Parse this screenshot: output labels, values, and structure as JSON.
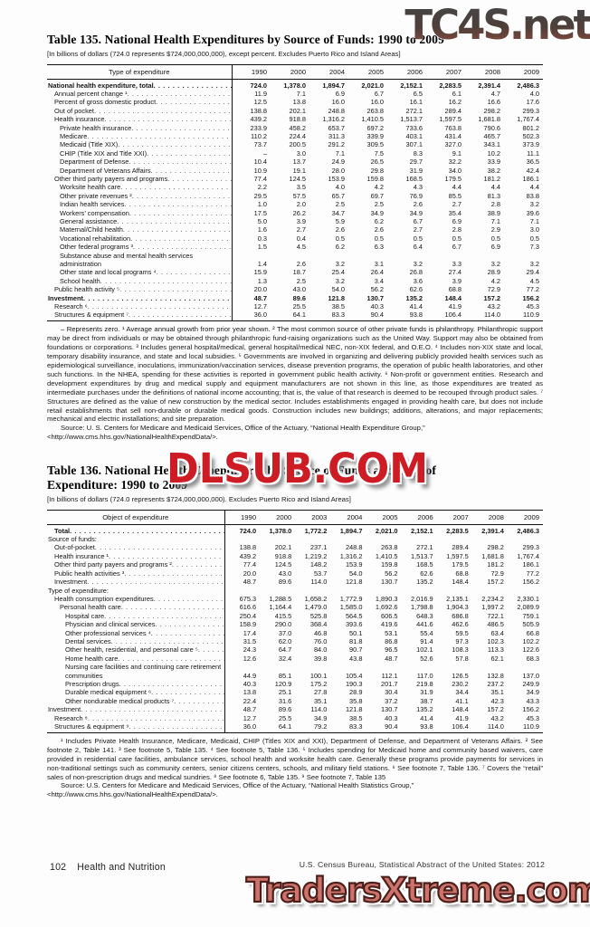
{
  "watermarks": {
    "top_right": "TC4S.net",
    "middle": "DLSUB.COM",
    "bottom": "TradersXtreme.com"
  },
  "table135": {
    "title": "Table 135. National Health Expenditures by Source of Funds: 1990 to 2009",
    "subtitle": "[In billions of dollars (724.0 represents $724,000,000,000), except percent. Excludes Puerto Rico and Island Areas]",
    "stub_header": "Type of expenditure",
    "years": [
      "1990",
      "2000",
      "2004",
      "2005",
      "2006",
      "2007",
      "2008",
      "2009"
    ],
    "rows": [
      {
        "label": "National health expenditure, total",
        "indent": 0,
        "bold": true,
        "values": [
          "724.0",
          "1,378.0",
          "1,894.7",
          "2,021.0",
          "2,152.1",
          "2,283.5",
          "2,391.4",
          "2,486.3"
        ]
      },
      {
        "label": "Annual percent change ¹",
        "indent": 1,
        "values": [
          "11.9",
          "7.1",
          "6.9",
          "6.7",
          "6.5",
          "6.1",
          "4.7",
          "4.0"
        ]
      },
      {
        "label": "Percent of gross domestic product",
        "indent": 1,
        "values": [
          "12.5",
          "13.8",
          "16.0",
          "16.0",
          "16.1",
          "16.2",
          "16.6",
          "17.6"
        ]
      },
      {
        "label": "Out of pocket",
        "indent": 1,
        "values": [
          "138.8",
          "202.1",
          "248.8",
          "263.8",
          "272.1",
          "289.4",
          "298.2",
          "299.3"
        ]
      },
      {
        "label": "Health insurance",
        "indent": 1,
        "values": [
          "439.2",
          "918.8",
          "1,316.2",
          "1,410.5",
          "1,513.7",
          "1,597.5",
          "1,681.8",
          "1,767.4"
        ]
      },
      {
        "label": "Private health insurance",
        "indent": 2,
        "values": [
          "233.9",
          "458.2",
          "653.7",
          "697.2",
          "733.6",
          "763.8",
          "790.6",
          "801.2"
        ]
      },
      {
        "label": "Medicare",
        "indent": 2,
        "values": [
          "110.2",
          "224.4",
          "311.3",
          "339.9",
          "403.1",
          "431.4",
          "465.7",
          "502.3"
        ]
      },
      {
        "label": "Medicaid (Title XIX)",
        "indent": 2,
        "values": [
          "73.7",
          "200.5",
          "291.2",
          "309.5",
          "307.1",
          "327.0",
          "343.1",
          "373.9"
        ]
      },
      {
        "label": "CHIP (Title XIX and Title XXI)",
        "indent": 2,
        "values": [
          "–",
          "3.0",
          "7.1",
          "7.5",
          "8.3",
          "9.1",
          "10.2",
          "11.1"
        ]
      },
      {
        "label": "Department of Defense",
        "indent": 2,
        "values": [
          "10.4",
          "13.7",
          "24.9",
          "26.5",
          "29.7",
          "32.2",
          "33.9",
          "36.5"
        ]
      },
      {
        "label": "Department of Veterans Affairs",
        "indent": 2,
        "values": [
          "10.9",
          "19.1",
          "28.0",
          "29.8",
          "31.9",
          "34.0",
          "38.2",
          "42.4"
        ]
      },
      {
        "label": "Other third party payers and programs",
        "indent": 1,
        "values": [
          "77.4",
          "124.5",
          "153.9",
          "159.8",
          "168.5",
          "179.5",
          "181.2",
          "186.1"
        ]
      },
      {
        "label": "Worksite health care",
        "indent": 2,
        "values": [
          "2.2",
          "3.5",
          "4.0",
          "4.2",
          "4.3",
          "4.4",
          "4.4",
          "4.4"
        ]
      },
      {
        "label": "Other private revenues ²",
        "indent": 2,
        "values": [
          "29.5",
          "57.5",
          "65.7",
          "69.7",
          "76.9",
          "85.5",
          "81.3",
          "83.8"
        ]
      },
      {
        "label": "Indian health services",
        "indent": 2,
        "values": [
          "1.0",
          "2.0",
          "2.5",
          "2.5",
          "2.6",
          "2.7",
          "2.8",
          "3.2"
        ]
      },
      {
        "label": "Workers’ compensation",
        "indent": 2,
        "values": [
          "17.5",
          "26.2",
          "34.7",
          "34.9",
          "34.9",
          "35.4",
          "38.9",
          "39.6"
        ]
      },
      {
        "label": "General assistance",
        "indent": 2,
        "values": [
          "5.0",
          "3.9",
          "5.9",
          "6.2",
          "6.7",
          "6.9",
          "7.1",
          "7.1"
        ]
      },
      {
        "label": "Maternal/Child health",
        "indent": 2,
        "values": [
          "1.6",
          "2.7",
          "2.6",
          "2.6",
          "2.7",
          "2.8",
          "2.9",
          "3.0"
        ]
      },
      {
        "label": "Vocational rehabilitation",
        "indent": 2,
        "values": [
          "0.3",
          "0.4",
          "0.5",
          "0.5",
          "0.5",
          "0.5",
          "0.5",
          "0.5"
        ]
      },
      {
        "label": "Other federal programs ³",
        "indent": 2,
        "values": [
          "1.5",
          "4.5",
          "6.2",
          "6.3",
          "6.4",
          "6.7",
          "6.9",
          "7.3"
        ]
      },
      {
        "label": "Substance abuse and mental health services administration",
        "indent": 2,
        "values": [
          "1.4",
          "2.6",
          "3.2",
          "3.1",
          "3.2",
          "3.3",
          "3.2",
          "3.2"
        ]
      },
      {
        "label": "Other state and local programs ⁴",
        "indent": 2,
        "values": [
          "15.9",
          "18.7",
          "25.4",
          "26.4",
          "26.8",
          "27.4",
          "28.9",
          "29.4"
        ]
      },
      {
        "label": "School health",
        "indent": 2,
        "values": [
          "1.3",
          "2.5",
          "3.2",
          "3.4",
          "3.6",
          "3.9",
          "4.2",
          "4.5"
        ]
      },
      {
        "label": "Public health activity ⁵",
        "indent": 1,
        "values": [
          "20.0",
          "43.0",
          "54.0",
          "56.2",
          "62.6",
          "68.8",
          "72.9",
          "77.2"
        ]
      },
      {
        "label": "Investment",
        "indent": 0,
        "bold": true,
        "values": [
          "48.7",
          "89.6",
          "121.8",
          "130.7",
          "135.2",
          "148.4",
          "157.2",
          "156.2"
        ]
      },
      {
        "label": "Research ⁶",
        "indent": 1,
        "values": [
          "12.7",
          "25.5",
          "38.5",
          "40.3",
          "41.4",
          "41.9",
          "43.2",
          "45.3"
        ]
      },
      {
        "label": "Structures & equipment ⁷",
        "indent": 1,
        "values": [
          "36.0",
          "64.1",
          "83.3",
          "90.4",
          "93.8",
          "106.4",
          "114.0",
          "110.9"
        ]
      }
    ],
    "footnote": "– Represents zero. ¹ Average annual growth from prior year shown. ² The most common source of other private funds is philanthropy. Philanthropic support may be direct from individuals or may be obtained through philanthropic fund-raising organizations such as the United Way. Support may also be obtained from foundations or corporations. ³ Includes general hospital/medical, general hospital/medical NEC, non-XIX federal, and O.E.O. ⁴ Includes non-XIX state and local, temporary disability insurance, and state and local subsidies. ⁵ Governments are involved in organizing and delivering publicly provided health services such as epidemiological surveillance, inoculations, immunization/vaccination services, disease prevention programs, the operation of public health laboratories, and other such functions. In the NHEA, spending for these activities is reported in government public health activity. ⁶ Non-profit or government entities. Research and development expenditures by drug and medical supply and equipment manufacturers are not shown in this line, as those expenditures are treated as intermediate purchases under the definitions of national income accounting; that is, the value of that research is deemed to be recouped through product sales. ⁷ Structures are defined as the value of new construction by the medical sector. Includes establishments engaged in providing health care, but does not include retail establishments that sell non-durable or durable medical goods. Construction includes new buildings; additions, alterations, and major replacements; mechanical and electric installations; and site preparation.",
    "source_lines": [
      "Source: U. S. Centers for Medicare and Medicaid Services, Office of the Actuary, “National Health Expenditure Group,”",
      "<http://www.cms.hhs.gov/NationalHealthExpendData/>."
    ]
  },
  "table136": {
    "title": "Table 136. National Health Expenditures by Source of Funds and Type of Expenditure: 1990 to 2009",
    "subtitle": "[In billions of dollars (724.0 represents $724,000,000,000). Excludes Puerto Rico and Island Areas]",
    "stub_header": "Object of expenditure",
    "years": [
      "1990",
      "2000",
      "2003",
      "2004",
      "2005",
      "2006",
      "2007",
      "2008",
      "2009"
    ],
    "rows": [
      {
        "label": "Total",
        "indent": 1,
        "bold": true,
        "values": [
          "724.0",
          "1,378.0",
          "1,772.2",
          "1,894.7",
          "2,021.0",
          "2,152.1",
          "2,283.5",
          "2,391.4",
          "2,486.3"
        ]
      },
      {
        "label": "Source of funds:",
        "indent": 0,
        "values": []
      },
      {
        "label": "Out-of-pocket",
        "indent": 1,
        "values": [
          "138.8",
          "202.1",
          "237.1",
          "248.8",
          "263.8",
          "272.1",
          "289.4",
          "298.2",
          "299.3"
        ]
      },
      {
        "label": "Health insurance ¹",
        "indent": 1,
        "values": [
          "439.2",
          "918.8",
          "1,219.2",
          "1,316.2",
          "1,410.5",
          "1,513.7",
          "1,597.5",
          "1,681.8",
          "1,767.4"
        ]
      },
      {
        "label": "Other third party payers and programs ²",
        "indent": 1,
        "values": [
          "77.4",
          "124.5",
          "148.2",
          "153.9",
          "159.8",
          "168.5",
          "179.5",
          "181.2",
          "186.1"
        ]
      },
      {
        "label": "Public health activities ³",
        "indent": 1,
        "values": [
          "20.0",
          "43.0",
          "53.7",
          "54.0",
          "56.2",
          "62.6",
          "68.8",
          "72.9",
          "77.2"
        ]
      },
      {
        "label": "Investment",
        "indent": 1,
        "values": [
          "48.7",
          "89.6",
          "114.0",
          "121.8",
          "130.7",
          "135.2",
          "148.4",
          "157.2",
          "156.2"
        ]
      },
      {
        "label": "Type of expenditure:",
        "indent": 0,
        "values": []
      },
      {
        "label": "Health consumption expenditures",
        "indent": 1,
        "values": [
          "675.3",
          "1,288.5",
          "1,658.2",
          "1,772.9",
          "1,890.3",
          "2,016.9",
          "2,135.1",
          "2,234.2",
          "2,330.1"
        ]
      },
      {
        "label": "Personal health care",
        "indent": 2,
        "values": [
          "616.6",
          "1,164.4",
          "1,479.0",
          "1,585.0",
          "1,692.6",
          "1,798.8",
          "1,904.3",
          "1,997.2",
          "2,089.9"
        ]
      },
      {
        "label": "Hospital care",
        "indent": 3,
        "values": [
          "250.4",
          "415.5",
          "525.8",
          "564.5",
          "606.5",
          "648.3",
          "686.8",
          "722.1",
          "759.1"
        ]
      },
      {
        "label": "Physician and clinical services",
        "indent": 3,
        "values": [
          "158.9",
          "290.0",
          "368.4",
          "393.6",
          "419.6",
          "441.6",
          "462.6",
          "486.5",
          "505.9"
        ]
      },
      {
        "label": "Other professional services ⁴",
        "indent": 3,
        "values": [
          "17.4",
          "37.0",
          "46.8",
          "50.1",
          "53.1",
          "55.4",
          "59.5",
          "63.4",
          "66.8"
        ]
      },
      {
        "label": "Dental services",
        "indent": 3,
        "values": [
          "31.5",
          "62.0",
          "76.0",
          "81.8",
          "86.8",
          "91.4",
          "97.3",
          "102.3",
          "102.2"
        ]
      },
      {
        "label": "Other health, residential, and personal care ⁵",
        "indent": 3,
        "values": [
          "24.3",
          "64.7",
          "84.0",
          "90.7",
          "96.5",
          "102.1",
          "108.3",
          "113.3",
          "122.6"
        ]
      },
      {
        "label": "Home health care",
        "indent": 3,
        "values": [
          "12.6",
          "32.4",
          "39.8",
          "43.8",
          "48.7",
          "52.6",
          "57.8",
          "62.1",
          "68.3"
        ]
      },
      {
        "label": "Nursing care facilities and continuing care retirement communities",
        "indent": 3,
        "values": [
          "44.9",
          "85.1",
          "100.1",
          "105.4",
          "112.1",
          "117.0",
          "126.5",
          "132.8",
          "137.0"
        ]
      },
      {
        "label": "Prescription drugs",
        "indent": 3,
        "values": [
          "40.3",
          "120.9",
          "175.2",
          "190.3",
          "201.7",
          "219.8",
          "230.2",
          "237.2",
          "249.9"
        ]
      },
      {
        "label": "Durable medical equipment ⁶",
        "indent": 3,
        "values": [
          "13.8",
          "25.1",
          "27.8",
          "28.9",
          "30.4",
          "31.9",
          "34.4",
          "35.1",
          "34.9"
        ]
      },
      {
        "label": "Other nondurable medical products ⁷",
        "indent": 3,
        "values": [
          "22.4",
          "31.6",
          "35.1",
          "35.8",
          "37.2",
          "38.7",
          "41.1",
          "42.3",
          "43.3"
        ]
      },
      {
        "label": "Investment",
        "indent": 0,
        "values": [
          "48.7",
          "89.6",
          "114.0",
          "121.8",
          "130.7",
          "135.2",
          "148.4",
          "157.2",
          "156.2"
        ]
      },
      {
        "label": "Research ⁸",
        "indent": 1,
        "values": [
          "12.7",
          "25.5",
          "34.9",
          "38.5",
          "40.3",
          "41.4",
          "41.9",
          "43.2",
          "45.3"
        ]
      },
      {
        "label": "Structures & equipment ⁹",
        "indent": 1,
        "values": [
          "36.0",
          "64.1",
          "79.2",
          "83.3",
          "90.4",
          "93.8",
          "106.4",
          "114.0",
          "110.9"
        ]
      }
    ],
    "footnote": "¹ Includes Private Health Insurance, Medicare, Medicaid, CHIP (Titles XIX and XXI), Department of Defense, and Department of Veterans Affairs. ² See footnote 2, Table 141. ³ See footnote 5, Table 135. ⁴ See footnote 5, Table 136. ⁵ Includes spending for Medicaid home and community based waivers, care provided in residential care facilities, ambulance services, school health and worksite health care. Generally these programs provide payments for services in non-traditional settings such as community centers, senior citizens centers, schools, and military field stations. ⁶ See footnote 7, Table 136. ⁷ Covers the “retail” sales of non-prescription drugs and medical sundries. ⁸ See footnote 6, Table 135. ⁹ See footnote 7, Table 135",
    "source_lines": [
      "Source: U.S. Centers for Medicare and Medicaid Services, Office of the Actuary, “National Health Statistics Group,”",
      "<http://www.cms.hhs.gov/NationalHealthExpendData/>."
    ]
  },
  "footer": {
    "page_number": "102",
    "section_title": "Health and Nutrition",
    "census_note": "U.S. Census Bureau, Statistical Abstract of the United States: 2012"
  }
}
